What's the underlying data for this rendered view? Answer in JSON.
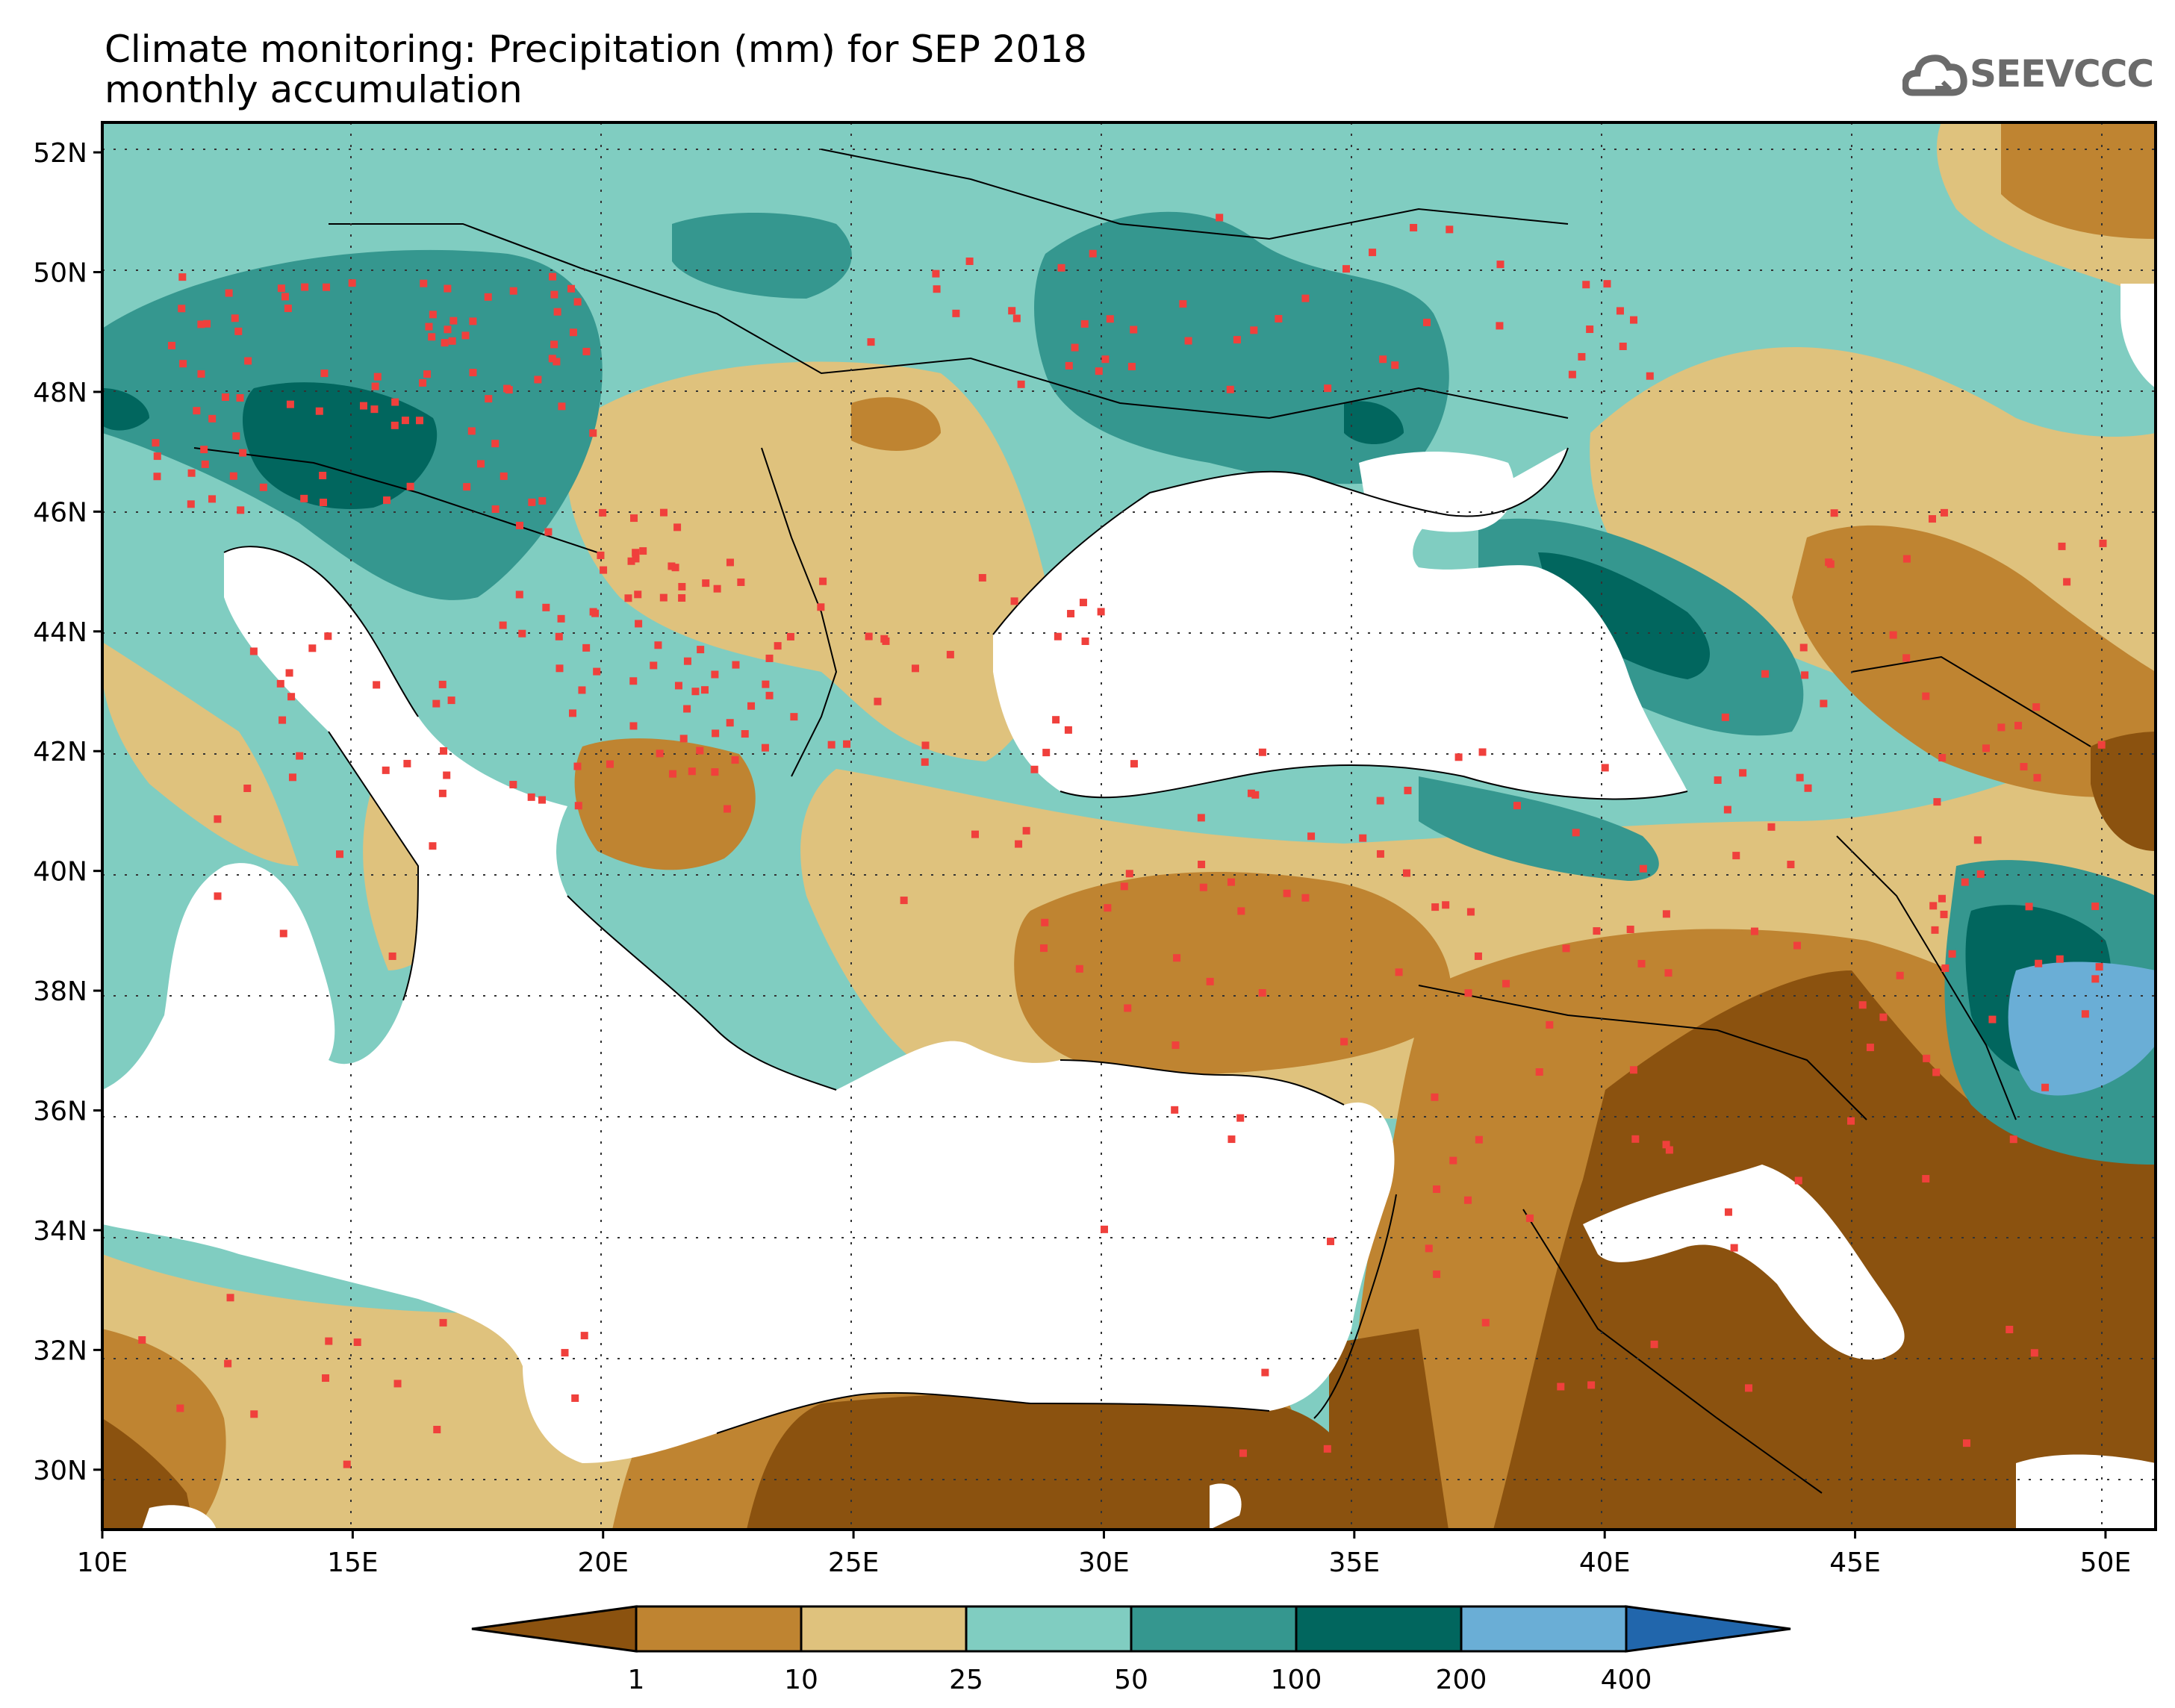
{
  "title": {
    "line1": "Climate monitoring: Precipitation (mm) for SEP 2018",
    "line2": "monthly accumulation"
  },
  "logo": {
    "text": "SEEVCCC",
    "icon": "cloud-icon"
  },
  "map": {
    "lon_range": [
      10,
      51
    ],
    "lat_range": [
      29,
      52.5
    ],
    "lat_ticks": [
      "52N",
      "50N",
      "48N",
      "46N",
      "44N",
      "42N",
      "40N",
      "38N",
      "36N",
      "34N",
      "32N",
      "30N"
    ],
    "lon_ticks": [
      "10E",
      "15E",
      "20E",
      "25E",
      "30E",
      "35E",
      "40E",
      "45E",
      "50E"
    ],
    "gridlines": "dotted"
  },
  "legend": {
    "units": "mm",
    "thresholds": [
      "1",
      "10",
      "25",
      "50",
      "100",
      "200",
      "400"
    ],
    "colors": [
      "#8b520f",
      "#bf8431",
      "#dfc27d",
      "#80cdc1",
      "#35978f",
      "#01665e",
      "#6aaed6",
      "#2166ac"
    ]
  }
}
